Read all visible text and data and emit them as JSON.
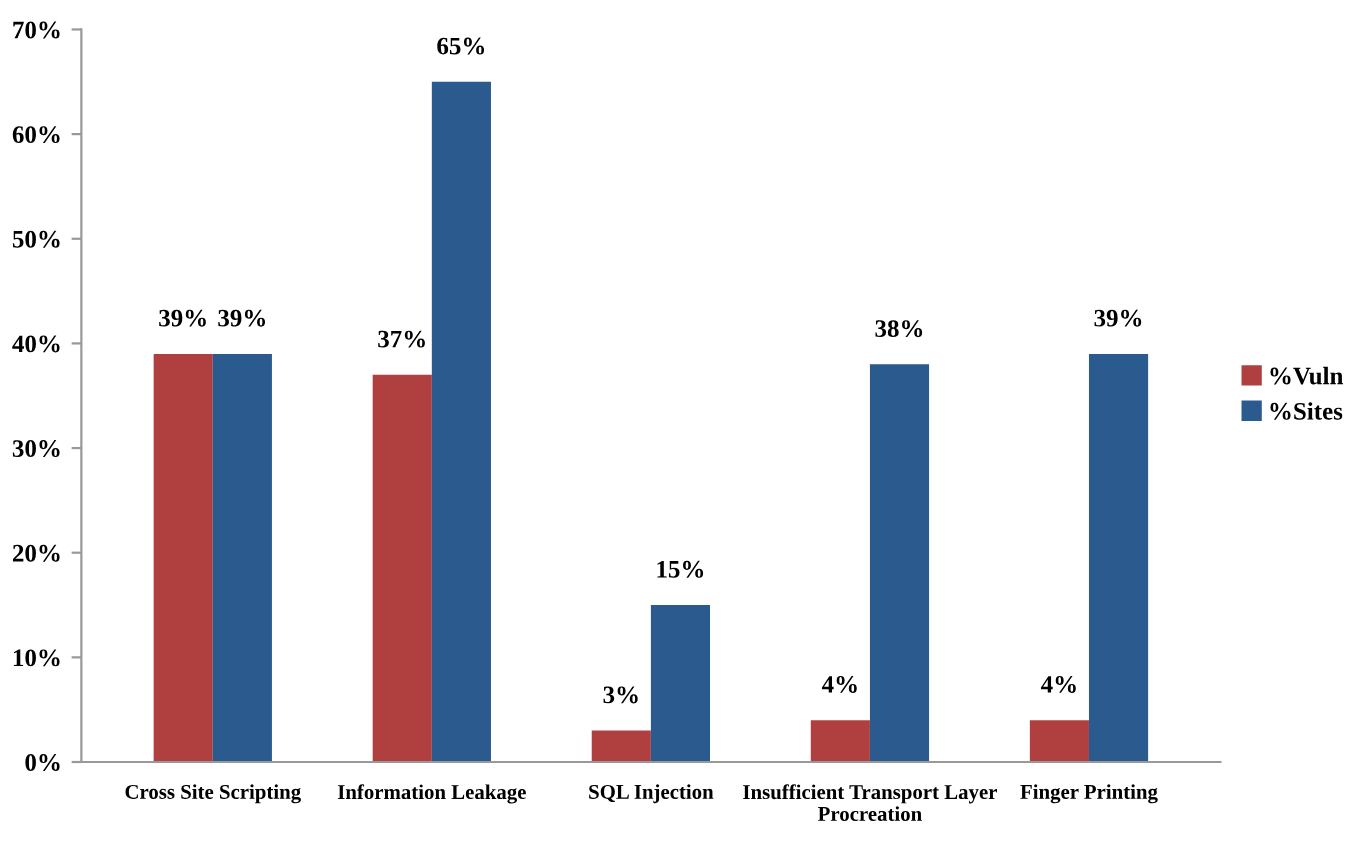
{
  "chart_data": {
    "type": "bar",
    "categories": [
      "Cross Site Scripting",
      "Information Leakage",
      "SQL Injection",
      "Insufficient Transport Layer\nProcreation",
      "Finger Printing"
    ],
    "series": [
      {
        "name": "%Vuln",
        "color": "#b04040",
        "values": [
          39,
          37,
          3,
          4,
          4
        ],
        "value_labels": [
          "39%",
          "37%",
          "3%",
          "4%",
          "4%"
        ]
      },
      {
        "name": "%Sites",
        "color": "#2b5a8f",
        "values": [
          39,
          65,
          15,
          38,
          39
        ],
        "value_labels": [
          "39%",
          "65%",
          "15%",
          "38%",
          "39%"
        ]
      }
    ],
    "ylim": [
      0,
      70
    ],
    "yticks": [
      {
        "value": 0,
        "label": "0%"
      },
      {
        "value": 10,
        "label": "10%"
      },
      {
        "value": 20,
        "label": "20%"
      },
      {
        "value": 30,
        "label": "30%"
      },
      {
        "value": 40,
        "label": "40%"
      },
      {
        "value": 50,
        "label": "50%"
      },
      {
        "value": 60,
        "label": "60%"
      },
      {
        "value": 70,
        "label": "70%"
      }
    ],
    "grid": false,
    "legend": "right"
  }
}
